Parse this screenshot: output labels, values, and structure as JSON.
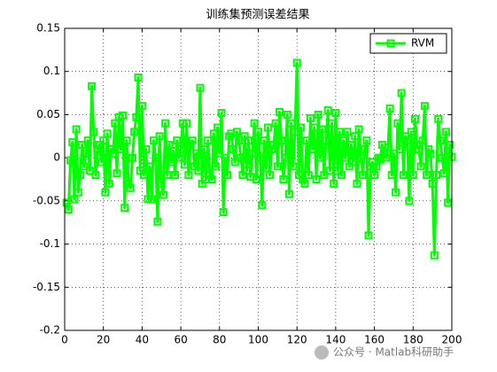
{
  "chart_data": {
    "type": "line",
    "title": "训练集预测误差结果",
    "x": [
      1,
      2,
      3,
      4,
      5,
      6,
      7,
      8,
      9,
      10,
      11,
      12,
      13,
      14,
      15,
      16,
      17,
      18,
      19,
      20,
      21,
      22,
      23,
      24,
      25,
      26,
      27,
      28,
      29,
      30,
      31,
      32,
      33,
      34,
      35,
      36,
      37,
      38,
      39,
      40,
      41,
      42,
      43,
      44,
      45,
      46,
      47,
      48,
      49,
      50,
      51,
      52,
      53,
      54,
      55,
      56,
      57,
      58,
      59,
      60,
      61,
      62,
      63,
      64,
      65,
      66,
      67,
      68,
      69,
      70,
      71,
      72,
      73,
      74,
      75,
      76,
      77,
      78,
      79,
      80,
      81,
      82,
      83,
      84,
      85,
      86,
      87,
      88,
      89,
      90,
      91,
      92,
      93,
      94,
      95,
      96,
      97,
      98,
      99,
      100,
      101,
      102,
      103,
      104,
      105,
      106,
      107,
      108,
      109,
      110,
      111,
      112,
      113,
      114,
      115,
      116,
      117,
      118,
      119,
      120,
      121,
      122,
      123,
      124,
      125,
      126,
      127,
      128,
      129,
      130,
      131,
      132,
      133,
      134,
      135,
      136,
      137,
      138,
      139,
      140,
      141,
      142,
      143,
      144,
      145,
      146,
      147,
      148,
      149,
      150,
      151,
      152,
      153,
      154,
      155,
      156,
      157,
      158,
      159,
      160,
      161,
      162,
      163,
      164,
      165,
      166,
      167,
      168,
      169,
      170,
      171,
      172,
      173,
      174,
      175,
      176,
      177,
      178,
      179,
      180,
      181,
      182,
      183,
      184,
      185,
      186,
      187,
      188,
      189,
      190,
      191,
      192,
      193,
      194,
      195,
      196,
      197,
      198,
      199,
      200
    ],
    "series": [
      {
        "name": "RVM",
        "color": "#00ff00",
        "values": [
          -0.052,
          -0.06,
          -0.003,
          0.018,
          -0.048,
          0.033,
          -0.04,
          -0.02,
          0.015,
          -0.01,
          0.005,
          0.02,
          -0.015,
          0.083,
          0.03,
          -0.02,
          0.01,
          0.015,
          -0.005,
          0.02,
          -0.04,
          0.028,
          -0.03,
          0.01,
          0.005,
          0.04,
          -0.018,
          0.047,
          0.01,
          0.049,
          -0.058,
          0.02,
          -0.03,
          -0.035,
          0.0,
          0.03,
          0.047,
          0.093,
          -0.015,
          0.06,
          -0.02,
          0.01,
          -0.048,
          -0.01,
          -0.048,
          0.02,
          0.0,
          -0.074,
          0.025,
          -0.03,
          -0.043,
          0.04,
          -0.02,
          0.015,
          -0.005,
          0.008,
          -0.02,
          0.02,
          0.0,
          0.01,
          0.04,
          -0.008,
          0.04,
          -0.02,
          0.015,
          0.02,
          -0.01,
          0.005,
          -0.015,
          0.081,
          -0.03,
          0.01,
          -0.025,
          0.02,
          -0.02,
          -0.025,
          0.028,
          -0.01,
          0.035,
          0.005,
          0.052,
          -0.063,
          0.0,
          -0.02,
          0.025,
          0.028,
          0.01,
          -0.005,
          0.03,
          0.02,
          0.0,
          -0.02,
          0.025,
          -0.015,
          0.02,
          -0.022,
          0.005,
          0.04,
          -0.025,
          0.03,
          0.0,
          -0.055,
          0.02,
          -0.012,
          0.035,
          -0.02,
          0.01,
          0.015,
          0.04,
          -0.01,
          0.053,
          0.02,
          -0.025,
          0.0,
          0.05,
          -0.042,
          0.04,
          -0.01,
          0.03,
          0.11,
          -0.02,
          0.035,
          -0.025,
          -0.03,
          0.02,
          -0.02,
          0.046,
          0.01,
          0.035,
          -0.025,
          0.05,
          0.0,
          0.033,
          -0.02,
          0.02,
          0.055,
          -0.015,
          0.04,
          -0.03,
          0.052,
          -0.015,
          0.03,
          -0.02,
          0.02,
          0.0,
          0.03,
          -0.01,
          0.015,
          -0.005,
          0.025,
          -0.03,
          0.033,
          0.0,
          -0.02,
          0.01,
          0.02,
          -0.09,
          -0.01,
          -0.005,
          -0.02,
          -0.01,
          0.0,
          -0.002,
          0.015,
          0.005,
          0.0,
          0.012,
          0.057,
          -0.02,
          0.005,
          -0.04,
          0.04,
          0.01,
          0.075,
          -0.02,
          0.025,
          0.02,
          -0.05,
          0.03,
          -0.02,
          0.045,
          0.015,
          0.01,
          -0.01,
          0.02,
          0.06,
          -0.02,
          0.01,
          0.005,
          -0.03,
          -0.113,
          -0.02,
          0.045,
          0.02,
          0.0,
          -0.018,
          0.03,
          -0.052,
          0.015,
          0.001
        ]
      }
    ],
    "xlim": [
      0,
      200
    ],
    "xticks": [
      0,
      20,
      40,
      60,
      80,
      100,
      120,
      140,
      160,
      180,
      200
    ],
    "ylim": [
      -0.2,
      0.15
    ],
    "yticks": [
      -0.2,
      -0.15,
      -0.1,
      -0.05,
      0,
      0.05,
      0.1,
      0.15
    ],
    "grid": true,
    "legend": "upper right"
  },
  "watermark": "公众号 · Matlab科研助手"
}
